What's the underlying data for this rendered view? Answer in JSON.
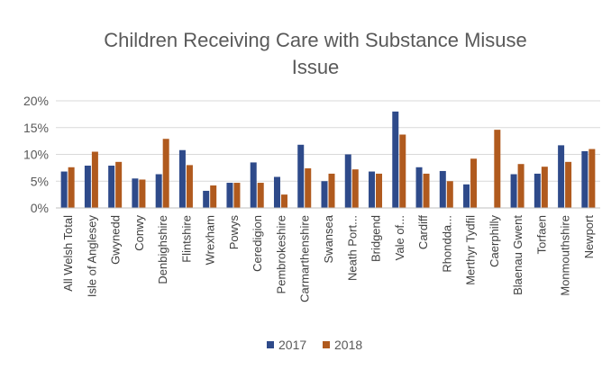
{
  "chart_data": {
    "type": "bar",
    "title": "Children Receiving Care with Substance Misuse Issue",
    "title_lines": [
      "Children Receiving Care with Substance Misuse",
      "Issue"
    ],
    "xlabel": "",
    "ylabel": "",
    "ylim": [
      0,
      0.2
    ],
    "yticks": [
      0,
      0.05,
      0.1,
      0.15,
      0.2
    ],
    "ytick_labels": [
      "0%",
      "5%",
      "10%",
      "15%",
      "20%"
    ],
    "grid": true,
    "legend_position": "bottom",
    "categories": [
      "All Welsh Total",
      "Isle of Anglesey",
      "Gwynedd",
      "Conwy",
      "Denbighshire",
      "Flintshire",
      "Wrexham",
      "Powys",
      "Ceredigion",
      "Pembrokeshire",
      "Carmarthenshire",
      "Swansea",
      "Neath Port...",
      "Bridgend",
      "Vale of...",
      "Cardiff",
      "Rhondda...",
      "Merthyr Tydfil",
      "Caerphilly",
      "Blaenau Gwent",
      "Torfaen",
      "Monmouthshire",
      "Newport"
    ],
    "series": [
      {
        "name": "2017",
        "color": "#2E4A8A",
        "values": [
          0.068,
          0.079,
          0.079,
          0.055,
          0.063,
          0.108,
          0.032,
          0.047,
          0.085,
          0.058,
          0.118,
          0.05,
          0.1,
          0.068,
          0.18,
          0.076,
          0.069,
          0.044,
          0.0,
          0.063,
          0.064,
          0.117,
          0.106
        ]
      },
      {
        "name": "2018",
        "color": "#B05A1E",
        "values": [
          0.076,
          0.105,
          0.086,
          0.053,
          0.129,
          0.08,
          0.042,
          0.047,
          0.047,
          0.025,
          0.074,
          0.064,
          0.072,
          0.064,
          0.137,
          0.064,
          0.05,
          0.092,
          0.146,
          0.082,
          0.077,
          0.086,
          0.11
        ]
      }
    ]
  }
}
